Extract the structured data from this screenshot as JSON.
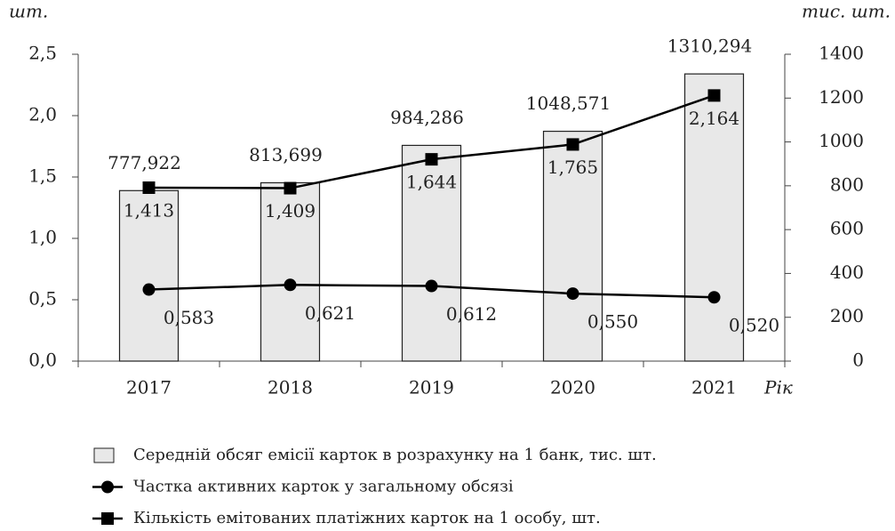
{
  "chart_data": {
    "type": "combo",
    "ylabel": "шт.",
    "y2label": "тис. шт.",
    "xlabel": "Рік",
    "categories": [
      "2017",
      "2018",
      "2019",
      "2020",
      "2021"
    ],
    "ylim": [
      0,
      2.5
    ],
    "yticks": [
      {
        "value": 0,
        "label": "0,0"
      },
      {
        "value": 0.5,
        "label": "0,5"
      },
      {
        "value": 1,
        "label": "1,0"
      },
      {
        "value": 1.5,
        "label": "1,5"
      },
      {
        "value": 2,
        "label": "2,0"
      },
      {
        "value": 2.5,
        "label": "2,5"
      }
    ],
    "y2lim": [
      0,
      1400
    ],
    "y2ticks": [
      0,
      200,
      400,
      600,
      800,
      1000,
      1200,
      1400
    ],
    "series": [
      {
        "name": "Середній обсяг емісії карток в розрахунку на 1 банк, тис. шт.",
        "type": "bar",
        "axis": "y2",
        "color": "#e8e8e8",
        "values": [
          777.922,
          813.699,
          984.286,
          1048.571,
          1310.294
        ],
        "value_labels": [
          "777,922",
          "813,699",
          "984,286",
          "1048,571",
          "1310,294"
        ]
      },
      {
        "name": "Частка активних карток у загальному обсязі",
        "type": "line",
        "marker": "circle",
        "color": "#000000",
        "values": [
          0.583,
          0.621,
          0.612,
          0.55,
          0.52
        ],
        "value_labels": [
          "0,583",
          "0,621",
          "0,612",
          "0,550",
          "0,520"
        ]
      },
      {
        "name": "Кількість емітованих платіжних карток на 1 особу, шт.",
        "type": "line",
        "marker": "square",
        "color": "#000000",
        "values": [
          1.413,
          1.409,
          1.644,
          1.765,
          2.164
        ],
        "value_labels": [
          "1,413",
          "1,409",
          "1,644",
          "1,765",
          "2,164"
        ]
      }
    ]
  }
}
